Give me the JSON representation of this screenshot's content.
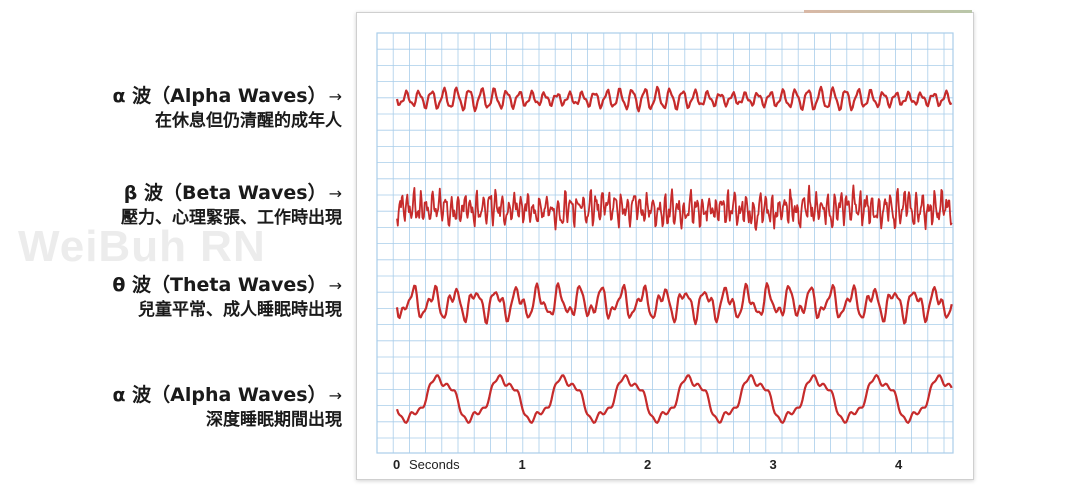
{
  "watermark": "WeiBuh RN",
  "waves": [
    {
      "title": "α 波（Alpha Waves）",
      "desc": "在休息但仍清醒的成年人"
    },
    {
      "title": "β 波（Beta Waves）",
      "desc": "壓力、心理緊張、工作時出現"
    },
    {
      "title": "θ 波（Theta Waves）",
      "desc": "兒童平常、成人睡眠時出現"
    },
    {
      "title": "α 波（Alpha Waves）",
      "desc": "深度睡眠期間出現"
    }
  ],
  "arrow": "→",
  "colors": {
    "grid": "#a9cdea",
    "trace": "#c62b2b",
    "text": "#1a1a1a"
  },
  "chart_data": {
    "type": "line",
    "title": "",
    "xlabel": "Seconds",
    "x_ticks": [
      "0",
      "1",
      "2",
      "3",
      "4"
    ],
    "xlim": [
      0,
      4.2
    ],
    "grid": true,
    "series": [
      {
        "name": "α 波（Alpha Waves）",
        "freq_hz": 10,
        "amplitude": 0.5
      },
      {
        "name": "β 波（Beta Waves）",
        "freq_hz": 20,
        "amplitude": 0.8
      },
      {
        "name": "θ 波（Theta Waves）",
        "freq_hz": 6,
        "amplitude": 0.8
      },
      {
        "name": "α 波（Alpha Waves）",
        "freq_hz": 2,
        "amplitude": 1.0
      }
    ]
  }
}
